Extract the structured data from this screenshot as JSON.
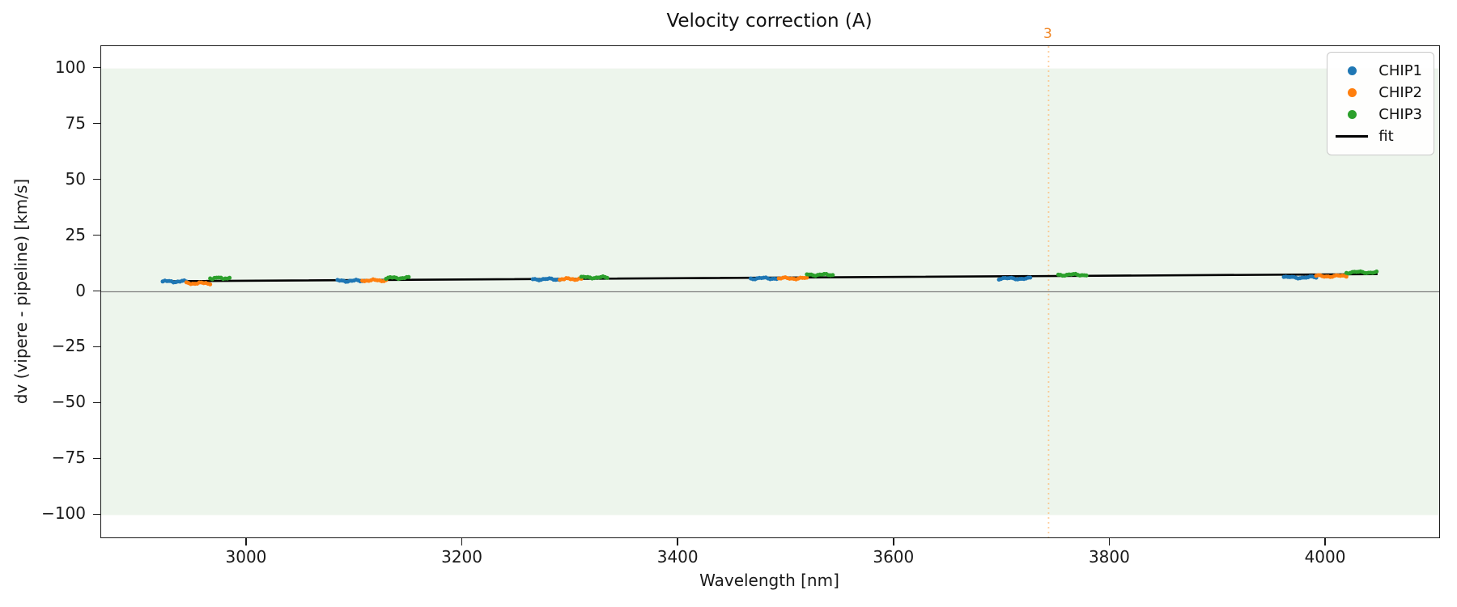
{
  "figure": {
    "title": "Velocity correction (A)",
    "xlabel": "Wavelength [nm]",
    "ylabel": "dv (vipere - pipeline) [km/s]"
  },
  "chart_data": {
    "type": "scatter",
    "title": "Velocity correction (A)",
    "xlabel": "Wavelength [nm]",
    "ylabel": "dv (vipere - pipeline) [km/s]",
    "xlim": [
      2865,
      4105
    ],
    "ylim": [
      -110,
      110
    ],
    "grid": false,
    "xticks": [
      {
        "v": 3000,
        "label": "3000"
      },
      {
        "v": 3200,
        "label": "3200"
      },
      {
        "v": 3400,
        "label": "3400"
      },
      {
        "v": 3600,
        "label": "3600"
      },
      {
        "v": 3800,
        "label": "3800"
      },
      {
        "v": 4000,
        "label": "4000"
      }
    ],
    "yticks": [
      {
        "v": 100,
        "label": "100"
      },
      {
        "v": 75,
        "label": "75"
      },
      {
        "v": 50,
        "label": "50"
      },
      {
        "v": 25,
        "label": "25"
      },
      {
        "v": 0,
        "label": "0"
      },
      {
        "v": -25,
        "label": "−25"
      },
      {
        "v": -50,
        "label": "−50"
      },
      {
        "v": -75,
        "label": "−75"
      },
      {
        "v": -100,
        "label": "−100"
      }
    ],
    "shaded_band": {
      "y_min": -100,
      "y_max": 100,
      "color": "#edf5ec"
    },
    "zero_line": {
      "y": 0,
      "color": "#7f7f7f"
    },
    "vline": {
      "x": 3743,
      "label": "3",
      "label_color": "#f08522",
      "line_color": "rgba(255,173,92,0.6)",
      "style": "dotted"
    },
    "fit_line": {
      "name": "fit",
      "color": "#000000",
      "x": [
        2922,
        4047
      ],
      "y": [
        4.7,
        7.9
      ]
    },
    "marker_radius_px": 2.5,
    "series": [
      {
        "name": "CHIP1",
        "color": "#1f77b4",
        "segments": [
          {
            "x_start": 2922,
            "x_end": 2944,
            "dv": 4.6
          },
          {
            "x_start": 3084,
            "x_end": 3107,
            "dv": 4.9
          },
          {
            "x_start": 3265,
            "x_end": 3290,
            "dv": 5.6
          },
          {
            "x_start": 3467,
            "x_end": 3493,
            "dv": 6.0
          },
          {
            "x_start": 3697,
            "x_end": 3726,
            "dv": 5.9
          },
          {
            "x_start": 3961,
            "x_end": 3991,
            "dv": 6.4
          }
        ]
      },
      {
        "name": "CHIP2",
        "color": "#ff7f0e",
        "segments": [
          {
            "x_start": 2944,
            "x_end": 2966,
            "dv": 3.8
          },
          {
            "x_start": 3107,
            "x_end": 3129,
            "dv": 5.1
          },
          {
            "x_start": 3290,
            "x_end": 3310,
            "dv": 5.7
          },
          {
            "x_start": 3493,
            "x_end": 3519,
            "dv": 6.0
          },
          {
            "x_start": 3991,
            "x_end": 4019,
            "dv": 7.0
          }
        ]
      },
      {
        "name": "CHIP3",
        "color": "#2ca02c",
        "segments": [
          {
            "x_start": 2966,
            "x_end": 2984,
            "dv": 6.1
          },
          {
            "x_start": 3129,
            "x_end": 3150,
            "dv": 6.2
          },
          {
            "x_start": 3310,
            "x_end": 3334,
            "dv": 6.4
          },
          {
            "x_start": 3519,
            "x_end": 3543,
            "dv": 7.6
          },
          {
            "x_start": 3752,
            "x_end": 3778,
            "dv": 7.6
          },
          {
            "x_start": 4019,
            "x_end": 4047,
            "dv": 8.7
          }
        ]
      }
    ],
    "legend": {
      "position": "upper right",
      "entries": [
        {
          "label": "CHIP1",
          "marker": "dot",
          "color": "#1f77b4"
        },
        {
          "label": "CHIP2",
          "marker": "dot",
          "color": "#ff7f0e"
        },
        {
          "label": "CHIP3",
          "marker": "dot",
          "color": "#2ca02c"
        },
        {
          "label": "fit",
          "marker": "line",
          "color": "#000000"
        }
      ]
    }
  }
}
